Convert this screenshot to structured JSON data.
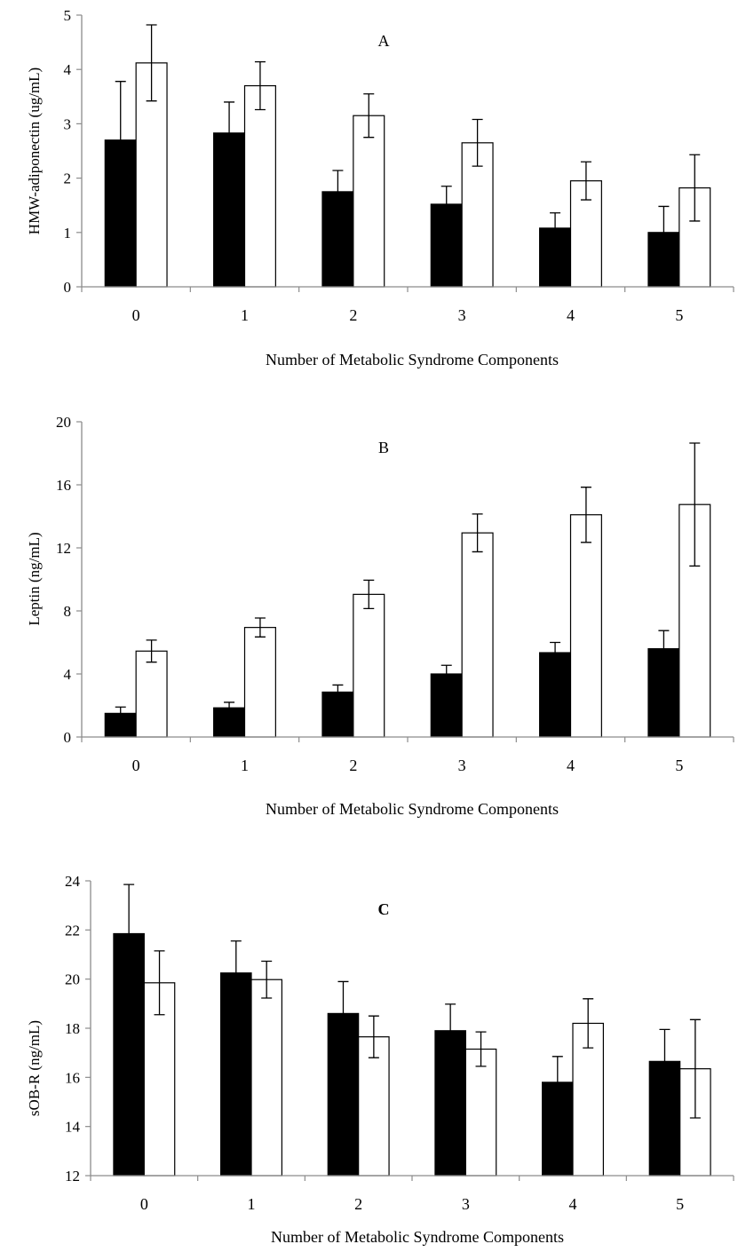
{
  "chart_data": [
    {
      "type": "bar",
      "panel_label": "A",
      "ylabel": "HMW-adiponectin (ug/mL)",
      "xlabel": "Number of Metabolic Syndrome Components",
      "categories": [
        "0",
        "1",
        "2",
        "3",
        "4",
        "5"
      ],
      "ylim": [
        0,
        5
      ],
      "yticks": [
        0,
        1,
        2,
        3,
        4,
        5
      ],
      "ytick_labels": [
        "0",
        "1",
        "2",
        "3",
        "4",
        "5"
      ],
      "series": [
        {
          "color": "#000000",
          "values": [
            2.7,
            2.83,
            1.75,
            1.52,
            1.08,
            1.0
          ],
          "errors": [
            1.08,
            0.57,
            0.39,
            0.33,
            0.28,
            0.48
          ]
        },
        {
          "color": "#ffffff",
          "values": [
            4.12,
            3.7,
            3.15,
            2.65,
            1.95,
            1.82
          ],
          "errors": [
            0.7,
            0.44,
            0.4,
            0.43,
            0.35,
            0.61
          ]
        }
      ]
    },
    {
      "type": "bar",
      "panel_label": "B",
      "ylabel": "Leptin (ng/mL)",
      "xlabel": "Number of Metabolic Syndrome Components",
      "categories": [
        "0",
        "1",
        "2",
        "3",
        "4",
        "5"
      ],
      "ylim": [
        0,
        20
      ],
      "yticks": [
        0,
        4,
        8,
        12,
        16,
        20
      ],
      "ytick_labels": [
        "0",
        "4",
        "8",
        "12",
        "16",
        "20"
      ],
      "series": [
        {
          "color": "#000000",
          "values": [
            1.5,
            1.85,
            2.85,
            4.0,
            5.35,
            5.6
          ],
          "errors": [
            0.4,
            0.35,
            0.45,
            0.55,
            0.65,
            1.15
          ]
        },
        {
          "color": "#ffffff",
          "values": [
            5.45,
            6.95,
            9.05,
            12.95,
            14.1,
            14.75
          ],
          "errors": [
            0.7,
            0.6,
            0.9,
            1.2,
            1.75,
            3.9
          ]
        }
      ]
    },
    {
      "type": "bar",
      "panel_label": "C",
      "ylabel": "sOB-R (ng/mL)",
      "xlabel": "Number of Metabolic Syndrome Components",
      "categories": [
        "0",
        "1",
        "2",
        "3",
        "4",
        "5"
      ],
      "ylim": [
        12,
        24
      ],
      "yticks": [
        12,
        14,
        16,
        18,
        20,
        22,
        24
      ],
      "ytick_labels": [
        "12",
        "14",
        "16",
        "18",
        "20",
        "22",
        "24"
      ],
      "series": [
        {
          "color": "#000000",
          "values": [
            21.85,
            20.25,
            18.6,
            17.9,
            15.8,
            16.65
          ],
          "errors": [
            2.0,
            1.3,
            1.3,
            1.08,
            1.05,
            1.3
          ]
        },
        {
          "color": "#ffffff",
          "values": [
            19.85,
            19.98,
            17.65,
            17.15,
            18.2,
            16.35
          ],
          "errors": [
            1.3,
            0.75,
            0.85,
            0.7,
            1.0,
            2.0
          ]
        }
      ]
    }
  ]
}
